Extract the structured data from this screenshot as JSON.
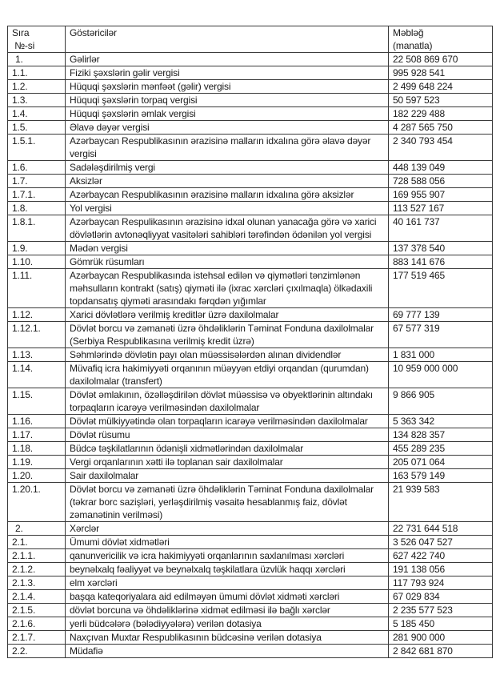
{
  "header": {
    "col1_line1": "Sıra",
    "col1_line2": "№-si",
    "col2": "Göstəricilər",
    "col3_line1": "Məbləğ",
    "col3_line2": "(manatla)"
  },
  "rows": [
    {
      "no": "1.",
      "name": "Gəlirlər",
      "amount": "22 508 869 670"
    },
    {
      "no": "1.1.",
      "name": "Fiziki şəxslərin gəlir vergisi",
      "amount": "995 928 541"
    },
    {
      "no": "1.2.",
      "name": "Hüquqi şəxslərin mənfəət (gəlir) vergisi",
      "amount": "2 499 648 224"
    },
    {
      "no": "1.3.",
      "name": "Hüquqi şəxslərin torpaq vergisi",
      "amount": "50 597 523"
    },
    {
      "no": "1.4.",
      "name": "Hüquqi şəxslərin əmlak vergisi",
      "amount": "182 229 488"
    },
    {
      "no": "1.5.",
      "name": "Əlavə dəyər vergisi",
      "amount": "4 287 565 750"
    },
    {
      "no": "1.5.1.",
      "name": "Azərbaycan Respublikasının ərazisinə malların idxalına görə əlavə dəyər vergisi",
      "amount": "2 340 793 454"
    },
    {
      "no": "1.6.",
      "name": "Sadələşdirilmiş vergi",
      "amount": "448 139 049"
    },
    {
      "no": "1.7.",
      "name": "Aksizlər",
      "amount": "728 588 056"
    },
    {
      "no": "1.7.1.",
      "name": "Azərbaycan Respublikasının ərazisinə malların idxalına görə aksizlər",
      "amount": "169 955 907"
    },
    {
      "no": "1.8.",
      "name": "Yol vergisi",
      "amount": "113 527 167"
    },
    {
      "no": "1.8.1.",
      "name": "Azərbaycan Respulikasının ərazisinə idxal olunan yanacağa görə və xarici dövlətlərin avtonəqliyyat vasitələri sahibləri tərəfindən ödənilən yol vergisi",
      "amount": "40 161 737"
    },
    {
      "no": "1.9.",
      "name": "Mədən vergisi",
      "amount": "137 378 540"
    },
    {
      "no": "1.10.",
      "name": "Gömrük rüsumları",
      "amount": "883 141 676"
    },
    {
      "no": "1.11.",
      "name": "Azərbaycan Respublikasında istehsal edilən və qiymətləri tənzimlənən məhsulların kontrakt (satış) qiyməti ilə (ixrac xərcləri çıxılmaqla) ölkədaxili topdansatış qiyməti arasındakı fərqdən yığımlar",
      "amount": "177 519 465"
    },
    {
      "no": "1.12.",
      "name": "Xarici dövlətlərə verilmiş kreditlər üzrə daxilolmalar",
      "amount": "69 777 139"
    },
    {
      "no": "1.12.1.",
      "name": "Dövlət borcu və zəmanəti üzrə öhdəliklərin Təminat Fonduna daxilolmalar (Serbiya Respublikasına verilmiş kredit üzrə)",
      "amount": "67 577 319"
    },
    {
      "no": "1.13.",
      "name": "Səhmlərində dövlətin payı olan müəssisələrdən alınan dividendlər",
      "amount": "1 831 000"
    },
    {
      "no": "1.14.",
      "name": "Müvafiq icra hakimiyyəti orqanının müəyyən etdiyi orqandan (qurumdan) daxilolmalar (transfert)",
      "amount": "10 959 000 000"
    },
    {
      "no": "1.15.",
      "name": "Dövlət əmlakının, özəlləşdirilən dövlət müəssisə və obyektlərinin altındakı torpaqların icarəyə verilməsindən daxilolmalar",
      "amount": "9 866 905"
    },
    {
      "no": "1.16.",
      "name": "Dövlət mülkiyyətində olan torpaqların icarəyə verilməsindən daxilolmalar",
      "amount": "5 363 342"
    },
    {
      "no": "1.17.",
      "name": "Dövlət rüsumu",
      "amount": "134 828 357"
    },
    {
      "no": "1.18.",
      "name": "Büdcə təşkilatlarının ödənişli xidmətlərindən daxilolmalar",
      "amount": "455 289 235"
    },
    {
      "no": "1.19.",
      "name": "Vergi orqanlarının xətti ilə toplanan sair daxilolmalar",
      "amount": "205 071 064"
    },
    {
      "no": "1.20.",
      "name": "Sair daxilolmalar",
      "amount": "163 579 149"
    },
    {
      "no": "1.20.1.",
      "name": "Dövlət borcu və zəmanəti üzrə öhdəliklərin Təminat Fonduna daxilolmalar (təkrar borc sazişləri, yerləşdirilmiş vəsaitə hesablanmış faiz, dövlət zəmanətinin verilməsi)",
      "amount": "21 939 583"
    },
    {
      "no": "2.",
      "name": "Xərclər",
      "amount": "22 731 644 518"
    },
    {
      "no": "2.1.",
      "name": "Ümumi dövlət xidmətləri",
      "amount": "3 526 047 527"
    },
    {
      "no": "2.1.1.",
      "name": "qanunvericilik və icra hakimiyyəti orqanlarının saxlanılması xərcləri",
      "amount": "627 422 740"
    },
    {
      "no": "2.1.2.",
      "name": "beynəlxalq fəaliyyət və beynəlxalq təşkilatlara üzvlük haqqı xərcləri",
      "amount": "191 138 056"
    },
    {
      "no": "2.1.3.",
      "name": "elm xərcləri",
      "amount": "117 793 924"
    },
    {
      "no": "2.1.4.",
      "name": "başqa kateqoriyalara aid edilməyən ümumi dövlət xidməti xərcləri",
      "amount": "67 029 834"
    },
    {
      "no": "2.1.5.",
      "name": "dövlət borcuna və öhdəliklərinə xidmət edilməsi ilə bağlı xərclər",
      "amount": "2 235 577 523"
    },
    {
      "no": "2.1.6.",
      "name": "yerli büdcələrə (bələdiyyələrə) verilən dotasiya",
      "amount": "5 185 450"
    },
    {
      "no": "2.1.7.",
      "name": "Naxçıvan Muxtar Respublikasının büdcəsinə verilən dotasiya",
      "amount": "281 900 000"
    },
    {
      "no": "2.2.",
      "name": "Müdafiə",
      "amount": "2 842 681 870"
    }
  ]
}
